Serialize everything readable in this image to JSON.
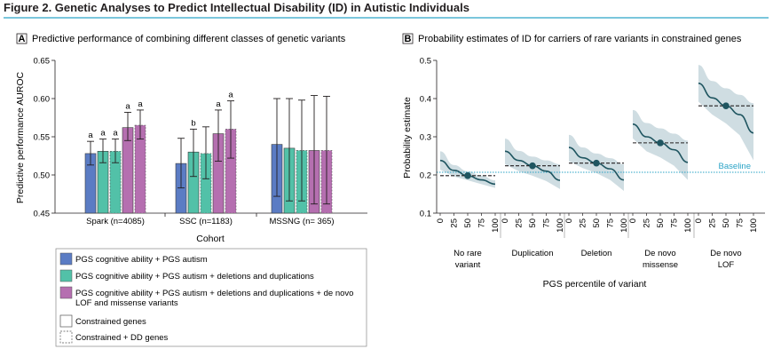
{
  "figure_title": "Figure 2. Genetic Analyses to Predict Intellectual Disability (ID) in Autistic Individuals",
  "chart_data": [
    {
      "type": "bar",
      "panel_letter": "A",
      "title": "Predictive performance of combining different classes of genetic variants",
      "xlabel": "Cohort",
      "ylabel": "Predictive performance AUROC",
      "ylim": [
        0.45,
        0.65
      ],
      "yticks": [
        "0.45",
        "0.50",
        "0.55",
        "0.60",
        "0.65"
      ],
      "ytick_values": [
        0.45,
        0.5,
        0.55,
        0.6,
        0.65
      ],
      "categories": [
        "Spark (n=4085)",
        "SSC (n=1183)",
        "MSSNG (n= 365)"
      ],
      "colors": [
        "#5b7cc4",
        "#52c1a8",
        "#b56fb0"
      ],
      "bars": [
        {
          "cohort": 0,
          "model": 0,
          "gene_set": "constrained",
          "value": 0.528,
          "ci": [
            0.513,
            0.544
          ],
          "sig": "a"
        },
        {
          "cohort": 0,
          "model": 1,
          "gene_set": "constrained",
          "value": 0.531,
          "ci": [
            0.516,
            0.547
          ],
          "sig": "a"
        },
        {
          "cohort": 0,
          "model": 1,
          "gene_set": "constrained+DD",
          "value": 0.531,
          "ci": [
            0.516,
            0.547
          ],
          "sig": "a"
        },
        {
          "cohort": 0,
          "model": 2,
          "gene_set": "constrained",
          "value": 0.562,
          "ci": [
            0.545,
            0.582
          ],
          "sig": "a"
        },
        {
          "cohort": 0,
          "model": 2,
          "gene_set": "constrained+DD",
          "value": 0.565,
          "ci": [
            0.547,
            0.585
          ],
          "sig": "a"
        },
        {
          "cohort": 1,
          "model": 0,
          "gene_set": "constrained",
          "value": 0.515,
          "ci": [
            0.483,
            0.548
          ],
          "sig": ""
        },
        {
          "cohort": 1,
          "model": 1,
          "gene_set": "constrained",
          "value": 0.53,
          "ci": [
            0.498,
            0.56
          ],
          "sig": "b"
        },
        {
          "cohort": 1,
          "model": 1,
          "gene_set": "constrained+DD",
          "value": 0.528,
          "ci": [
            0.495,
            0.563
          ],
          "sig": ""
        },
        {
          "cohort": 1,
          "model": 2,
          "gene_set": "constrained",
          "value": 0.554,
          "ci": [
            0.518,
            0.585
          ],
          "sig": "a"
        },
        {
          "cohort": 1,
          "model": 2,
          "gene_set": "constrained+DD",
          "value": 0.56,
          "ci": [
            0.522,
            0.597
          ],
          "sig": "a"
        },
        {
          "cohort": 2,
          "model": 0,
          "gene_set": "constrained",
          "value": 0.54,
          "ci": [
            0.472,
            0.6
          ],
          "sig": ""
        },
        {
          "cohort": 2,
          "model": 1,
          "gene_set": "constrained",
          "value": 0.535,
          "ci": [
            0.466,
            0.6
          ],
          "sig": ""
        },
        {
          "cohort": 2,
          "model": 1,
          "gene_set": "constrained+DD",
          "value": 0.532,
          "ci": [
            0.466,
            0.598
          ],
          "sig": ""
        },
        {
          "cohort": 2,
          "model": 2,
          "gene_set": "constrained",
          "value": 0.532,
          "ci": [
            0.462,
            0.604
          ],
          "sig": ""
        },
        {
          "cohort": 2,
          "model": 2,
          "gene_set": "constrained+DD",
          "value": 0.532,
          "ci": [
            0.462,
            0.603
          ],
          "sig": ""
        }
      ],
      "legend": {
        "models": [
          {
            "label": "PGS cognitive ability + PGS autism",
            "color": "#5b7cc4"
          },
          {
            "label": "PGS cognitive ability + PGS autism + deletions and duplications",
            "color": "#52c1a8"
          },
          {
            "label": "PGS cognitive ability + PGS autism + deletions and duplications + de novo",
            "label2": "LOF and missense variants",
            "color": "#b56fb0"
          }
        ],
        "gene_sets": [
          {
            "label": "Constrained genes",
            "style": "solid"
          },
          {
            "label": "Constrained + DD genes",
            "style": "dashed"
          }
        ]
      }
    },
    {
      "type": "line",
      "panel_letter": "B",
      "title": "Probability estimates of ID for carriers of rare variants in constrained genes",
      "xlabel": "PGS percentile of variant",
      "ylabel": "Probability estimate",
      "ylim": [
        0.1,
        0.5
      ],
      "yticks": [
        "0.1",
        "0.2",
        "0.3",
        "0.4",
        "0.5"
      ],
      "ytick_values": [
        0.1,
        0.2,
        0.3,
        0.4,
        0.5
      ],
      "xticks": [
        "0",
        "25",
        "50",
        "75",
        "100"
      ],
      "xtick_values": [
        0,
        25,
        50,
        75,
        100
      ],
      "baseline": {
        "label": "Baseline",
        "value": 0.207
      },
      "line_color": "#1f5560",
      "band_color": "#cfdde2",
      "baseline_color": "#2aa3c6",
      "series": [
        {
          "name": "No rare",
          "name2": "variant",
          "median_point": {
            "x": 50,
            "y": 0.198
          },
          "line": [
            [
              0,
              0.238
            ],
            [
              25,
              0.212
            ],
            [
              50,
              0.198
            ],
            [
              75,
              0.187
            ],
            [
              100,
              0.176
            ]
          ],
          "upper": [
            [
              0,
              0.262
            ],
            [
              25,
              0.226
            ],
            [
              50,
              0.21
            ],
            [
              75,
              0.198
            ],
            [
              100,
              0.186
            ]
          ],
          "lower": [
            [
              0,
              0.214
            ],
            [
              25,
              0.196
            ],
            [
              50,
              0.186
            ],
            [
              75,
              0.176
            ],
            [
              100,
              0.166
            ]
          ]
        },
        {
          "name": "Duplication",
          "name2": "",
          "median_point": {
            "x": 50,
            "y": 0.224
          },
          "line": [
            [
              0,
              0.262
            ],
            [
              25,
              0.238
            ],
            [
              50,
              0.224
            ],
            [
              75,
              0.21
            ],
            [
              100,
              0.186
            ]
          ],
          "upper": [
            [
              0,
              0.295
            ],
            [
              25,
              0.263
            ],
            [
              50,
              0.248
            ],
            [
              75,
              0.238
            ],
            [
              100,
              0.228
            ]
          ],
          "lower": [
            [
              0,
              0.228
            ],
            [
              25,
              0.21
            ],
            [
              50,
              0.198
            ],
            [
              75,
              0.184
            ],
            [
              100,
              0.163
            ]
          ]
        },
        {
          "name": "Deletion",
          "name2": "",
          "median_point": {
            "x": 50,
            "y": 0.231
          },
          "line": [
            [
              0,
              0.272
            ],
            [
              25,
              0.245
            ],
            [
              50,
              0.231
            ],
            [
              75,
              0.216
            ],
            [
              100,
              0.187
            ]
          ],
          "upper": [
            [
              0,
              0.305
            ],
            [
              25,
              0.272
            ],
            [
              50,
              0.256
            ],
            [
              75,
              0.244
            ],
            [
              100,
              0.228
            ]
          ],
          "lower": [
            [
              0,
              0.236
            ],
            [
              25,
              0.218
            ],
            [
              50,
              0.205
            ],
            [
              75,
              0.187
            ],
            [
              100,
              0.158
            ]
          ]
        },
        {
          "name": "De novo",
          "name2": "missense",
          "median_point": {
            "x": 50,
            "y": 0.284
          },
          "line": [
            [
              0,
              0.333
            ],
            [
              25,
              0.3
            ],
            [
              50,
              0.284
            ],
            [
              75,
              0.266
            ],
            [
              100,
              0.233
            ]
          ],
          "upper": [
            [
              0,
              0.37
            ],
            [
              25,
              0.336
            ],
            [
              50,
              0.322
            ],
            [
              75,
              0.308
            ],
            [
              100,
              0.29
            ]
          ],
          "lower": [
            [
              0,
              0.296
            ],
            [
              25,
              0.262
            ],
            [
              50,
              0.246
            ],
            [
              75,
              0.224
            ],
            [
              100,
              0.187
            ]
          ]
        },
        {
          "name": "De novo",
          "name2": "LOF",
          "median_point": {
            "x": 50,
            "y": 0.381
          },
          "line": [
            [
              0,
              0.44
            ],
            [
              25,
              0.402
            ],
            [
              50,
              0.381
            ],
            [
              75,
              0.358
            ],
            [
              100,
              0.31
            ]
          ],
          "upper": [
            [
              0,
              0.488
            ],
            [
              25,
              0.446
            ],
            [
              50,
              0.427
            ],
            [
              75,
              0.41
            ],
            [
              100,
              0.388
            ]
          ],
          "lower": [
            [
              0,
              0.392
            ],
            [
              25,
              0.358
            ],
            [
              50,
              0.335
            ],
            [
              75,
              0.304
            ],
            [
              100,
              0.238
            ]
          ]
        }
      ]
    }
  ]
}
